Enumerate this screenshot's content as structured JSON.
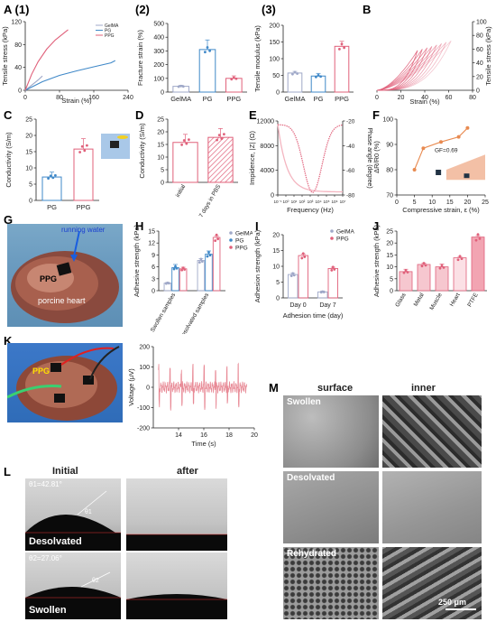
{
  "labels": {
    "A": "A",
    "A1": "(1)",
    "A2": "(2)",
    "A3": "(3)",
    "B": "B",
    "C": "C",
    "D": "D",
    "E": "E",
    "F": "F",
    "G": "G",
    "H": "H",
    "I": "I",
    "J": "J",
    "K": "K",
    "L": "L",
    "M": "M"
  },
  "photo_text": {
    "g_running_water": "running water",
    "g_ppg": "PPG",
    "g_heart": "porcine heart",
    "k_ppg": "PPG",
    "l_initial": "Initial",
    "l_after": "after",
    "l_theta1": "θ1=42.81°",
    "l_theta1_small": "θ1",
    "l_theta2": "θ2=27.06°",
    "l_theta2_small": "θ2",
    "l_desolvated": "Desolvated",
    "l_swollen": "Swollen",
    "m_surface": "surface",
    "m_inner": "inner",
    "m_swollen": "Swollen",
    "m_desolvated": "Desolvated",
    "m_rehydrated": "Rehydrated",
    "m_scale": "250 μm"
  },
  "colors": {
    "gelma": "#9fa8c8",
    "pg": "#3f88c8",
    "ppg": "#e0607a",
    "ppg_fill": "#f4b5c0",
    "orange": "#e88a50",
    "dark": "#333333"
  },
  "chart_data": [
    {
      "id": "A1",
      "type": "line",
      "xlabel": "Strain (%)",
      "ylabel": "Tensile stress (kPa)",
      "xlim": [
        0,
        240
      ],
      "ylim": [
        0,
        120
      ],
      "xticks": [
        0,
        80,
        160,
        240
      ],
      "yticks": [
        0,
        40,
        80,
        120
      ],
      "legend": [
        "GelMA",
        "PG",
        "PPG"
      ],
      "series": [
        {
          "name": "GelMA",
          "x": [
            0,
            10,
            20,
            30,
            40
          ],
          "y": [
            0,
            6,
            12,
            18,
            25
          ]
        },
        {
          "name": "PG",
          "x": [
            0,
            40,
            80,
            120,
            160,
            200,
            210
          ],
          "y": [
            0,
            15,
            26,
            34,
            41,
            48,
            52
          ]
        },
        {
          "name": "PPG",
          "x": [
            0,
            15,
            30,
            50,
            70,
            90,
            100
          ],
          "y": [
            0,
            28,
            50,
            72,
            88,
            100,
            106
          ]
        }
      ]
    },
    {
      "id": "A2",
      "type": "bar",
      "ylabel": "Fracture strain (%)",
      "categories": [
        "GelMA",
        "PG",
        "PPG"
      ],
      "values": [
        42,
        310,
        100
      ],
      "errors": [
        8,
        70,
        18
      ],
      "ylim": [
        0,
        500
      ],
      "yticks": [
        0,
        100,
        200,
        300,
        400,
        500
      ]
    },
    {
      "id": "A3",
      "type": "bar",
      "ylabel": "Tensile modulus (kPa)",
      "categories": [
        "GelMA",
        "PG",
        "PPG"
      ],
      "values": [
        57,
        48,
        137
      ],
      "errors": [
        5,
        8,
        15
      ],
      "ylim": [
        0,
        200
      ],
      "yticks": [
        0,
        50,
        100,
        150,
        200
      ]
    },
    {
      "id": "B",
      "type": "line",
      "xlabel": "Strain (%)",
      "ylabel": "Tensile stress (kPa)",
      "xlim": [
        0,
        80
      ],
      "ylim": [
        0,
        100
      ],
      "xticks": [
        0,
        20,
        40,
        60,
        80
      ],
      "yticks": [
        0,
        20,
        40,
        60,
        80,
        100
      ]
    },
    {
      "id": "C",
      "type": "bar",
      "ylabel": "Conductivity (S/m)",
      "categories": [
        "PG",
        "PPG"
      ],
      "values": [
        7.2,
        15.8
      ],
      "errors": [
        1.5,
        3.2
      ],
      "ylim": [
        0,
        25
      ],
      "yticks": [
        0,
        5,
        10,
        15,
        20,
        25
      ]
    },
    {
      "id": "D",
      "type": "bar",
      "ylabel": "Conductivity (S/m)",
      "categories": [
        "initial",
        "after 7 days in PBS"
      ],
      "values": [
        15.8,
        17.8
      ],
      "errors": [
        3.2,
        3.5
      ],
      "ylim": [
        0,
        25
      ],
      "yticks": [
        0,
        5,
        10,
        15,
        20,
        25
      ]
    },
    {
      "id": "E",
      "type": "line",
      "xlabel": "Frequency (Hz)",
      "ylabel": "Impidence, |Z| (Ω)",
      "y2label": "Phase angle (degree)",
      "xlim": [
        -1,
        7
      ],
      "ylim": [
        0,
        12000
      ],
      "y2lim": [
        -80,
        -20
      ],
      "xticks": [
        "10⁻¹",
        "10⁰",
        "10¹",
        "10²",
        "10³",
        "10⁴",
        "10⁵",
        "10⁶",
        "10⁷"
      ],
      "yticks": [
        0,
        4000,
        8000,
        12000
      ],
      "y2ticks": [
        -20,
        -40,
        -60,
        -80
      ]
    },
    {
      "id": "F",
      "type": "line",
      "xlabel": "Compressive strain, ε (%)",
      "ylabel": "ΔR/R0 (%)",
      "annotation": "GF=0.69",
      "xlim": [
        0,
        25
      ],
      "ylim": [
        70,
        100
      ],
      "xticks": [
        0,
        5,
        10,
        15,
        20,
        25
      ],
      "yticks": [
        70,
        80,
        90,
        100
      ],
      "x": [
        5,
        7.5,
        12.5,
        17.5,
        20
      ],
      "y": [
        80,
        88.5,
        91,
        93,
        96.5
      ]
    },
    {
      "id": "H",
      "type": "bar",
      "ylabel": "Adhesive strength (kPa)",
      "categories": [
        "Swollen samples",
        "Desolvated samples"
      ],
      "legend": [
        "GelMA",
        "PG",
        "PPG"
      ],
      "series": [
        {
          "name": "GelMA",
          "values": [
            1.9,
            7.6
          ],
          "errors": [
            0.2,
            0.5
          ]
        },
        {
          "name": "PG",
          "values": [
            5.8,
            9.2
          ],
          "errors": [
            0.8,
            0.8
          ]
        },
        {
          "name": "PPG",
          "values": [
            5.5,
            13.4
          ],
          "errors": [
            0.4,
            0.4
          ]
        }
      ],
      "ylim": [
        0,
        15
      ],
      "yticks": [
        0,
        3,
        6,
        9,
        12,
        15
      ]
    },
    {
      "id": "I",
      "type": "bar",
      "xlabel": "Adhesion time (day)",
      "ylabel": "Adhesion strength (kPa)",
      "categories": [
        "Day 0",
        "Day 7"
      ],
      "legend": [
        "GelMA",
        "PPG"
      ],
      "series": [
        {
          "name": "GelMA",
          "values": [
            7.4,
            1.9
          ],
          "errors": [
            0.5,
            0.3
          ]
        },
        {
          "name": "PPG",
          "values": [
            13.4,
            9.3
          ],
          "errors": [
            0.5,
            0.4
          ]
        }
      ],
      "ylim": [
        0,
        20
      ],
      "yticks": [
        0,
        5,
        10,
        15,
        20
      ]
    },
    {
      "id": "J",
      "type": "bar",
      "ylabel": "Adhesive strength (kPa)",
      "categories": [
        "Glass",
        "Metal",
        "Muscle",
        "Heart",
        "PTFE"
      ],
      "values": [
        8,
        11,
        10,
        13.8,
        22.5
      ],
      "errors": [
        1,
        0.6,
        1.2,
        0.5,
        0.6
      ],
      "ylim": [
        0,
        25
      ],
      "yticks": [
        0,
        5,
        10,
        15,
        20,
        25
      ]
    },
    {
      "id": "K",
      "type": "line",
      "xlabel": "Time (s)",
      "ylabel": "Voltage (μV)",
      "xlim": [
        12,
        20
      ],
      "ylim": [
        -200,
        200
      ],
      "xticks": [
        14,
        16,
        18,
        20
      ],
      "yticks": [
        -200,
        -100,
        0,
        100,
        200
      ]
    }
  ]
}
